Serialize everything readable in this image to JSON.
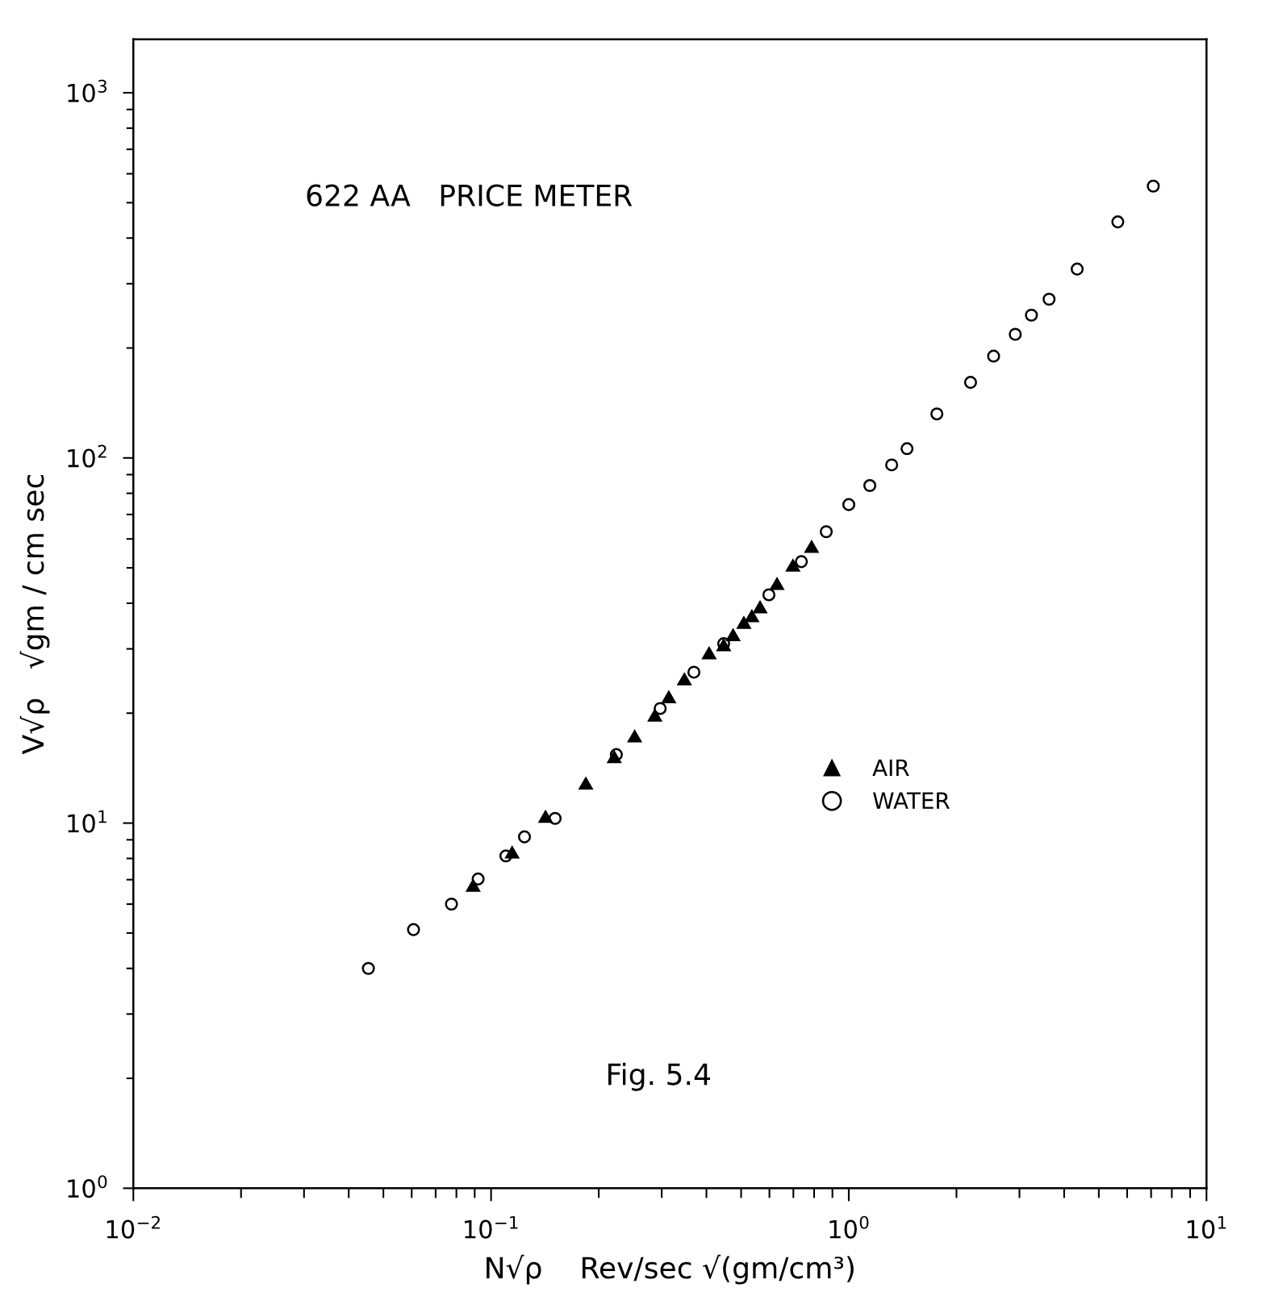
{
  "chart_data": {
    "type": "scatter",
    "log": "xy",
    "grid": false,
    "legend": "center right",
    "xlabel": "N√ρ    Rev/sec √(gm/cm³)",
    "ylabel": "V√ρ   √gm / cm sec",
    "xlim": [
      0.01,
      10
    ],
    "ylim": [
      1,
      1400
    ],
    "xticks": [
      {
        "value": 0.01,
        "label": "10$^{−2}$"
      },
      {
        "value": 0.1,
        "label": "10$^{−1}$"
      },
      {
        "value": 1,
        "label": "10$^{0}$"
      },
      {
        "value": 10,
        "label": "10$^{1}$"
      },
      {
        "value": 0.02,
        "label": null
      },
      {
        "value": 0.03,
        "label": null
      },
      {
        "value": 0.04,
        "label": null
      },
      {
        "value": 0.05,
        "label": null
      },
      {
        "value": 0.06,
        "label": null
      },
      {
        "value": 0.07,
        "label": null
      },
      {
        "value": 0.08,
        "label": null
      },
      {
        "value": 0.09,
        "label": null
      },
      {
        "value": 0.2,
        "label": null
      },
      {
        "value": 0.3,
        "label": null
      },
      {
        "value": 0.4,
        "label": null
      },
      {
        "value": 0.5,
        "label": null
      },
      {
        "value": 0.6,
        "label": null
      },
      {
        "value": 0.7,
        "label": null
      },
      {
        "value": 0.8,
        "label": null
      },
      {
        "value": 0.9,
        "label": null
      },
      {
        "value": 2,
        "label": null
      },
      {
        "value": 3,
        "label": null
      },
      {
        "value": 4,
        "label": null
      },
      {
        "value": 5,
        "label": null
      },
      {
        "value": 6,
        "label": null
      },
      {
        "value": 7,
        "label": null
      },
      {
        "value": 8,
        "label": null
      },
      {
        "value": 9,
        "label": null
      }
    ],
    "yticks": [
      {
        "value": 1,
        "label": "10$^{0}$"
      },
      {
        "value": 10,
        "label": "10$^{1}$"
      },
      {
        "value": 100,
        "label": "10$^{2}$"
      },
      {
        "value": 1000,
        "label": "10$^{3}$"
      },
      {
        "value": 2,
        "label": null
      },
      {
        "value": 3,
        "label": null
      },
      {
        "value": 4,
        "label": null
      },
      {
        "value": 5,
        "label": null
      },
      {
        "value": 6,
        "label": null
      },
      {
        "value": 7,
        "label": null
      },
      {
        "value": 8,
        "label": null
      },
      {
        "value": 9,
        "label": null
      },
      {
        "value": 20,
        "label": null
      },
      {
        "value": 30,
        "label": null
      },
      {
        "value": 40,
        "label": null
      },
      {
        "value": 50,
        "label": null
      },
      {
        "value": 60,
        "label": null
      },
      {
        "value": 70,
        "label": null
      },
      {
        "value": 80,
        "label": null
      },
      {
        "value": 90,
        "label": null
      },
      {
        "value": 200,
        "label": null
      },
      {
        "value": 300,
        "label": null
      },
      {
        "value": 400,
        "label": null
      },
      {
        "value": 500,
        "label": null
      },
      {
        "value": 600,
        "label": null
      },
      {
        "value": 700,
        "label": null
      },
      {
        "value": 800,
        "label": null
      },
      {
        "value": 900,
        "label": null
      }
    ],
    "annotations": [
      "622 AA   PRICE METER",
      "Fig. 5.4"
    ],
    "series": [
      {
        "name": "AIR",
        "color": "#000000",
        "marker": "triangle",
        "x": [
          0.0891,
          0.1145,
          0.142,
          0.184,
          0.221,
          0.252,
          0.287,
          0.314,
          0.347,
          0.407,
          0.447,
          0.475,
          0.509,
          0.536,
          0.565,
          0.63,
          0.698,
          0.787
        ],
        "values": [
          6.67,
          8.22,
          10.3,
          12.7,
          15.0,
          17.1,
          19.5,
          21.9,
          24.5,
          28.9,
          30.4,
          32.4,
          35.0,
          36.5,
          38.6,
          44.7,
          50.2,
          56.5
        ]
      },
      {
        "name": "WATER",
        "color": "#000000",
        "marker": "circle",
        "x": [
          0.0454,
          0.0607,
          0.0775,
          0.092,
          0.11,
          0.124,
          0.151,
          0.224,
          0.297,
          0.369,
          0.447,
          0.598,
          0.737,
          0.865,
          1.0,
          1.145,
          1.318,
          1.455,
          1.763,
          2.19,
          2.54,
          2.92,
          3.24,
          3.63,
          4.35,
          5.65,
          7.1
        ],
        "values": [
          4.0,
          5.11,
          6.0,
          7.03,
          8.13,
          9.17,
          10.3,
          15.4,
          20.6,
          25.9,
          31.0,
          42.2,
          52.0,
          62.8,
          74.5,
          84.0,
          95.7,
          106,
          132,
          161,
          190,
          218,
          246,
          272,
          329,
          443,
          555
        ]
      }
    ]
  }
}
